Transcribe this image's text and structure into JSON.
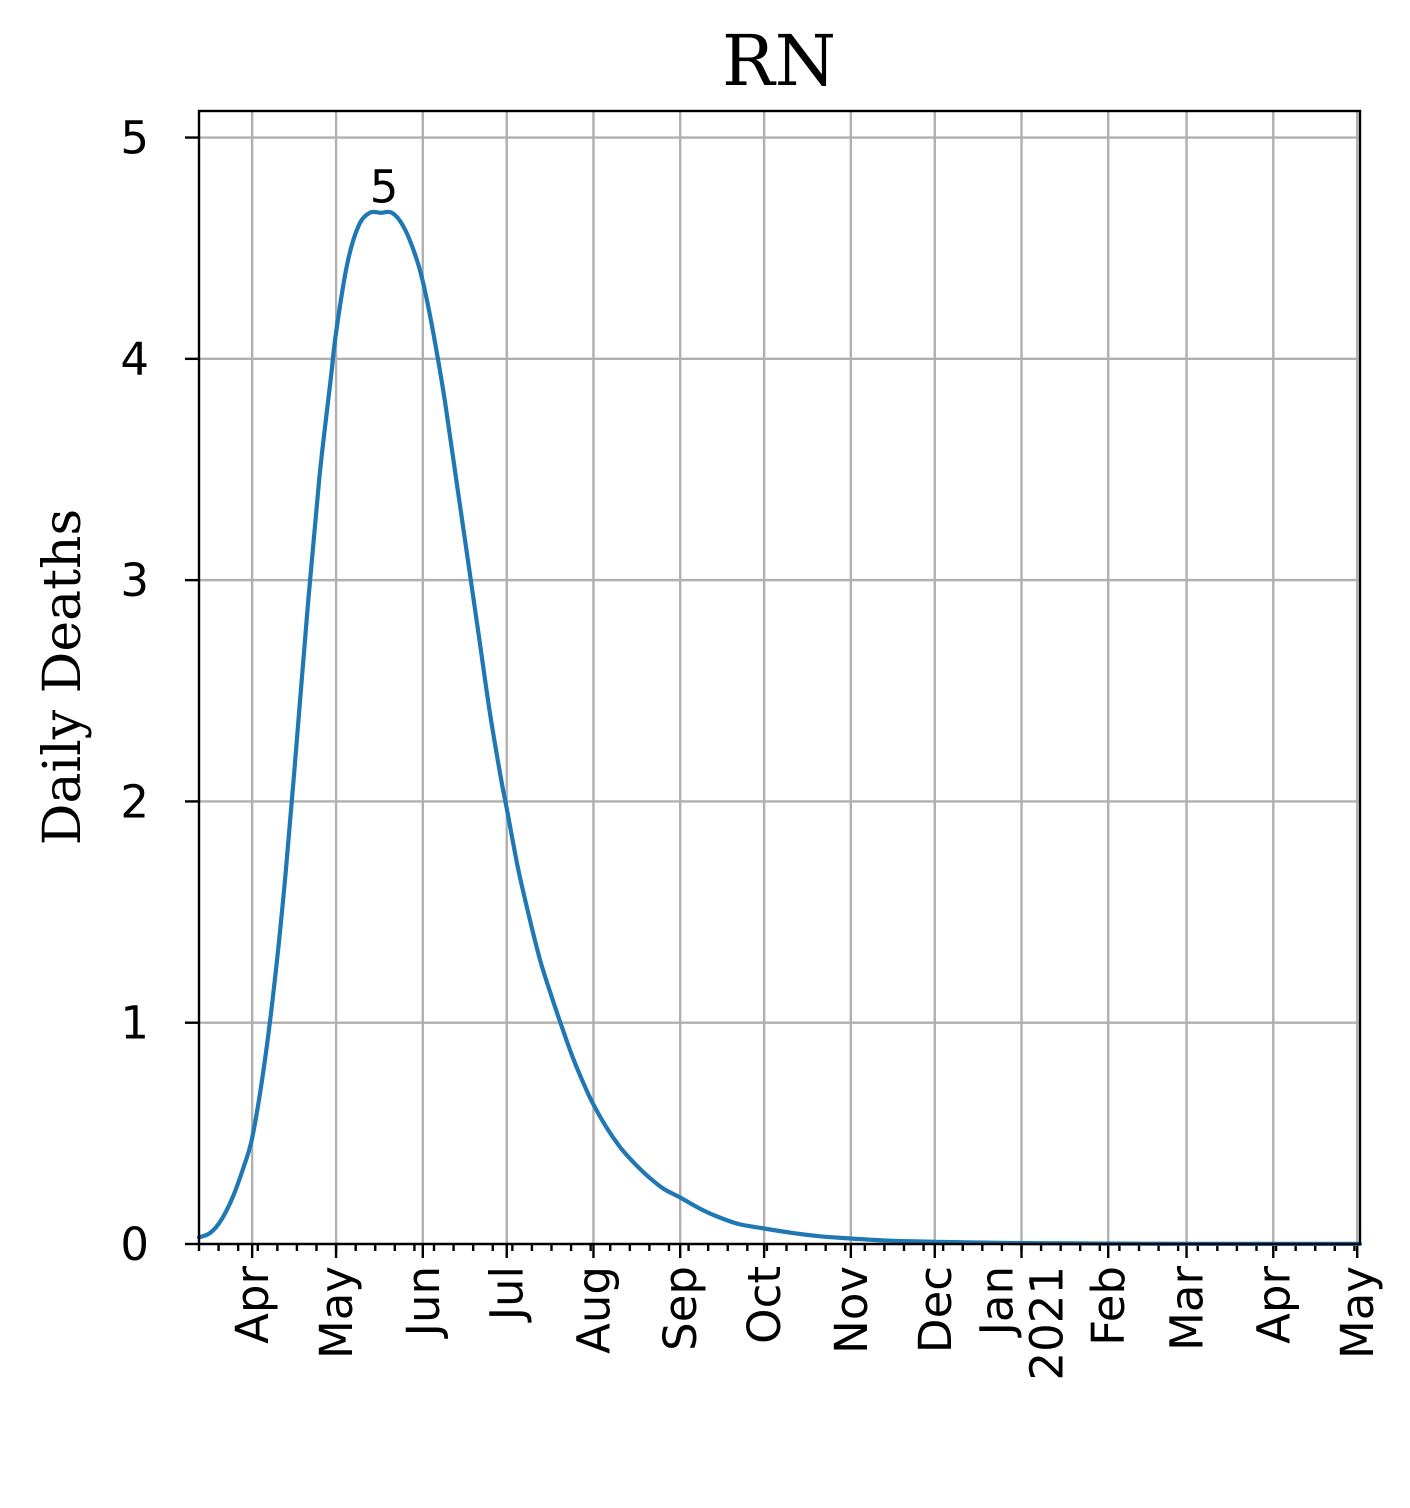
{
  "chart_data": {
    "type": "line",
    "title": "RN",
    "xlabel": "",
    "ylabel": "Daily Deaths",
    "x_axis": "date",
    "xlim": [
      "2020-03-13",
      "2021-05-02"
    ],
    "ylim": [
      0,
      5.12
    ],
    "yticks": [
      0,
      1,
      2,
      3,
      4,
      5
    ],
    "xticks": [
      {
        "date": "2020-04-01",
        "label": "Apr"
      },
      {
        "date": "2020-05-01",
        "label": "May"
      },
      {
        "date": "2020-06-01",
        "label": "Jun"
      },
      {
        "date": "2020-07-01",
        "label": "Jul"
      },
      {
        "date": "2020-08-01",
        "label": "Aug"
      },
      {
        "date": "2020-09-01",
        "label": "Sep"
      },
      {
        "date": "2020-10-01",
        "label": "Oct"
      },
      {
        "date": "2020-11-01",
        "label": "Nov"
      },
      {
        "date": "2020-12-01",
        "label": "Dec"
      },
      {
        "date": "2021-01-01",
        "label": "Jan\n2021"
      },
      {
        "date": "2021-02-01",
        "label": "Feb"
      },
      {
        "date": "2021-03-01",
        "label": "Mar"
      },
      {
        "date": "2021-04-01",
        "label": "Apr"
      },
      {
        "date": "2021-05-01",
        "label": "May"
      }
    ],
    "grid": true,
    "annotations": [
      {
        "text": "5",
        "x": "2020-05-21",
        "y": 4.67
      }
    ],
    "series": [
      {
        "name": "",
        "color": "#1f77b4",
        "x": [
          "2020-03-13",
          "2020-03-17",
          "2020-03-21",
          "2020-03-25",
          "2020-03-29",
          "2020-04-01",
          "2020-04-05",
          "2020-04-09",
          "2020-04-13",
          "2020-04-17",
          "2020-04-21",
          "2020-04-25",
          "2020-04-29",
          "2020-05-01",
          "2020-05-05",
          "2020-05-09",
          "2020-05-13",
          "2020-05-17",
          "2020-05-21",
          "2020-05-25",
          "2020-05-29",
          "2020-06-01",
          "2020-06-05",
          "2020-06-09",
          "2020-06-13",
          "2020-06-17",
          "2020-06-21",
          "2020-06-25",
          "2020-06-29",
          "2020-07-01",
          "2020-07-05",
          "2020-07-09",
          "2020-07-13",
          "2020-07-17",
          "2020-07-21",
          "2020-07-25",
          "2020-07-29",
          "2020-08-01",
          "2020-08-06",
          "2020-08-11",
          "2020-08-16",
          "2020-08-21",
          "2020-08-26",
          "2020-09-01",
          "2020-09-08",
          "2020-09-15",
          "2020-09-22",
          "2020-10-01",
          "2020-10-11",
          "2020-10-21",
          "2020-11-01",
          "2020-11-15",
          "2020-12-01",
          "2020-12-15",
          "2021-01-01",
          "2021-01-20",
          "2021-02-01",
          "2021-03-01",
          "2021-04-01",
          "2021-05-02"
        ],
        "values": [
          0.03,
          0.05,
          0.11,
          0.21,
          0.35,
          0.48,
          0.78,
          1.18,
          1.68,
          2.28,
          2.9,
          3.46,
          3.9,
          4.12,
          4.43,
          4.6,
          4.66,
          4.66,
          4.66,
          4.6,
          4.48,
          4.35,
          4.1,
          3.8,
          3.45,
          3.1,
          2.75,
          2.4,
          2.1,
          1.97,
          1.7,
          1.48,
          1.28,
          1.12,
          0.97,
          0.83,
          0.71,
          0.63,
          0.52,
          0.43,
          0.36,
          0.3,
          0.25,
          0.21,
          0.16,
          0.12,
          0.09,
          0.07,
          0.05,
          0.035,
          0.025,
          0.015,
          0.01,
          0.007,
          0.004,
          0.003,
          0.002,
          0.001,
          0.0005,
          0.0003
        ]
      }
    ]
  }
}
